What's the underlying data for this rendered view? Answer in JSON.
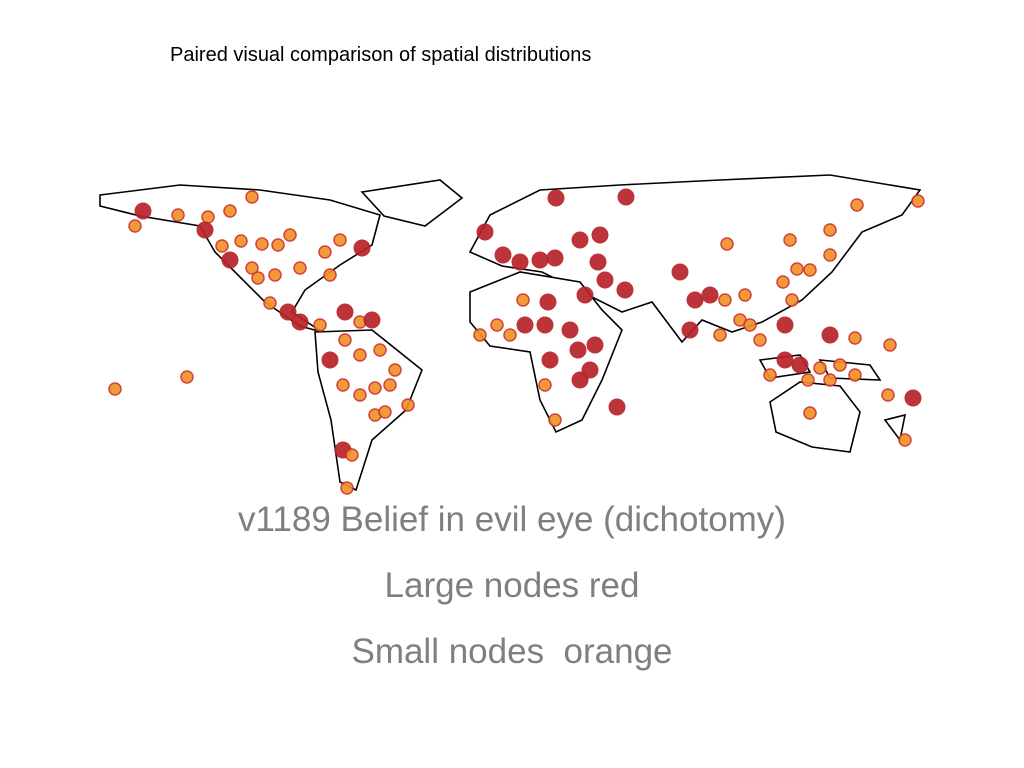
{
  "slide": {
    "title": "Paired visual comparison of spatial distributions",
    "caption_lines": [
      "v1189 Belief in evil eye (dichotomy)",
      "Large nodes red",
      "Small nodes  orange"
    ]
  }
}
